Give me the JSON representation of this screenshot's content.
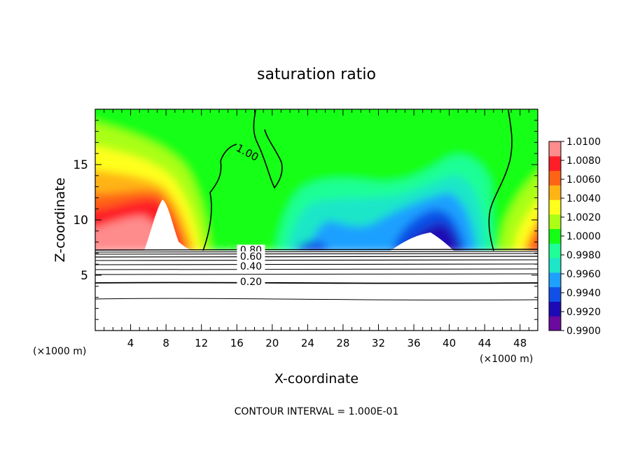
{
  "chart_data": {
    "type": "heatmap",
    "title": "saturation ratio",
    "xlabel": "X-coordinate",
    "ylabel": "Z-coordinate",
    "x_unit_left": "(×1000 m)",
    "x_unit_right": "(×1000 m)",
    "xlim": [
      0,
      50
    ],
    "ylim": [
      0,
      20
    ],
    "x_ticks": [
      4,
      8,
      12,
      16,
      20,
      24,
      28,
      32,
      36,
      40,
      44,
      48
    ],
    "y_ticks": [
      5,
      10,
      15
    ],
    "colorbar": {
      "min": 0.99,
      "max": 1.01,
      "tick_values": [
        0.99,
        0.992,
        0.994,
        0.996,
        0.998,
        1.0,
        1.002,
        1.004,
        1.006,
        1.008,
        1.01
      ],
      "tick_labels": [
        "0.9900",
        "0.9920",
        "0.9940",
        "0.9960",
        "0.9980",
        "1.0000",
        "1.0020",
        "1.0040",
        "1.0060",
        "1.0080",
        "1.0100"
      ],
      "colors": [
        "#6a0a9e",
        "#1e0ab4",
        "#1050e6",
        "#1ea0ff",
        "#1ee6c8",
        "#1eff96",
        "#14ff14",
        "#aaff14",
        "#ffff1e",
        "#ffb414",
        "#ff6414",
        "#ff1e28",
        "#ff8c8c"
      ]
    },
    "contour_labels": [
      {
        "text": "1.00",
        "x": 17.0,
        "z": 15.8
      },
      {
        "text": "0.80",
        "x": 17.6,
        "z": 7.0
      },
      {
        "text": "0.60",
        "x": 17.6,
        "z": 6.4
      },
      {
        "text": "0.40",
        "x": 17.6,
        "z": 5.5
      },
      {
        "text": "0.20",
        "x": 17.6,
        "z": 4.1
      }
    ],
    "contour_interval_text": "CONTOUR INTERVAL = 1.000E-01"
  }
}
